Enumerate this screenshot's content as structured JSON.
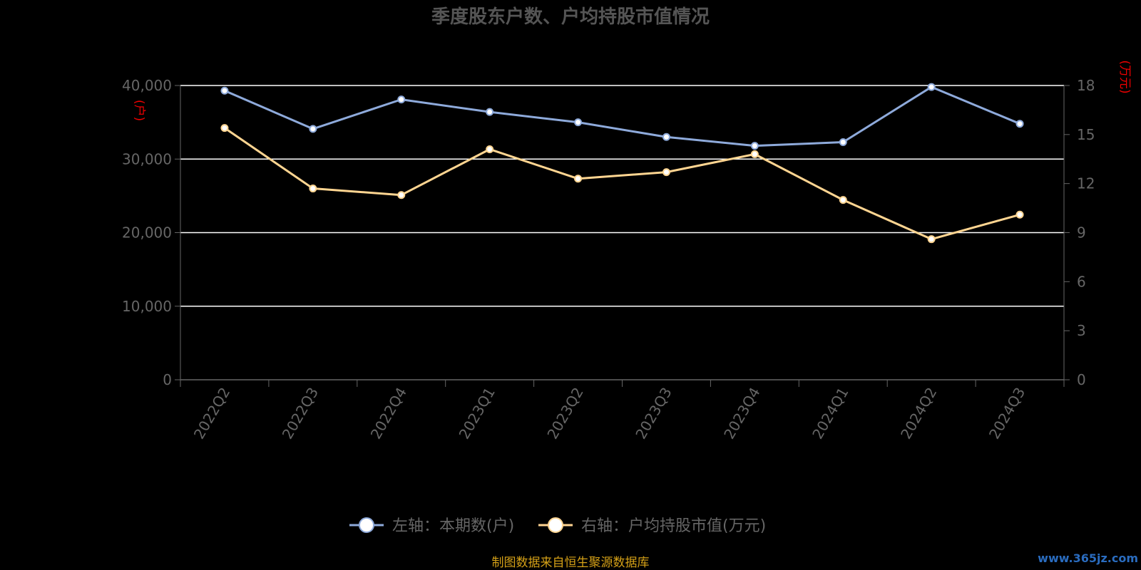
{
  "chart_data": {
    "type": "line",
    "title": "季度股东户数、户均持股市值情况",
    "categories": [
      "2022Q2",
      "2022Q3",
      "2022Q4",
      "2023Q1",
      "2023Q2",
      "2023Q3",
      "2023Q4",
      "2024Q1",
      "2024Q2",
      "2024Q3"
    ],
    "left_axis": {
      "unit": "(户)",
      "ylim": [
        0,
        40000
      ],
      "ticks": [
        "0",
        "10,000",
        "20,000",
        "30,000",
        "40,000"
      ],
      "tick_values": [
        0,
        10000,
        20000,
        30000,
        40000
      ]
    },
    "right_axis": {
      "unit": "(万元)",
      "ylim": [
        0,
        18
      ],
      "ticks": [
        "0",
        "3",
        "6",
        "9",
        "12",
        "15",
        "18"
      ],
      "tick_values": [
        0,
        3,
        6,
        9,
        12,
        15,
        18
      ]
    },
    "series": [
      {
        "name": "左轴：本期数(户)",
        "axis": "left",
        "color": "#8eaadb",
        "values": [
          39300,
          34100,
          38100,
          36400,
          35000,
          33000,
          31800,
          32300,
          39800,
          34800
        ]
      },
      {
        "name": "右轴：户均持股市值(万元)",
        "axis": "right",
        "color": "#ffd591",
        "values": [
          15.4,
          11.7,
          11.3,
          14.1,
          12.3,
          12.7,
          13.8,
          11.0,
          8.6,
          10.1
        ]
      }
    ],
    "grid": true,
    "legend_position": "bottom"
  },
  "footer": {
    "source": "制图数据来自恒生聚源数据库",
    "watermark": "www.365jz.com"
  }
}
